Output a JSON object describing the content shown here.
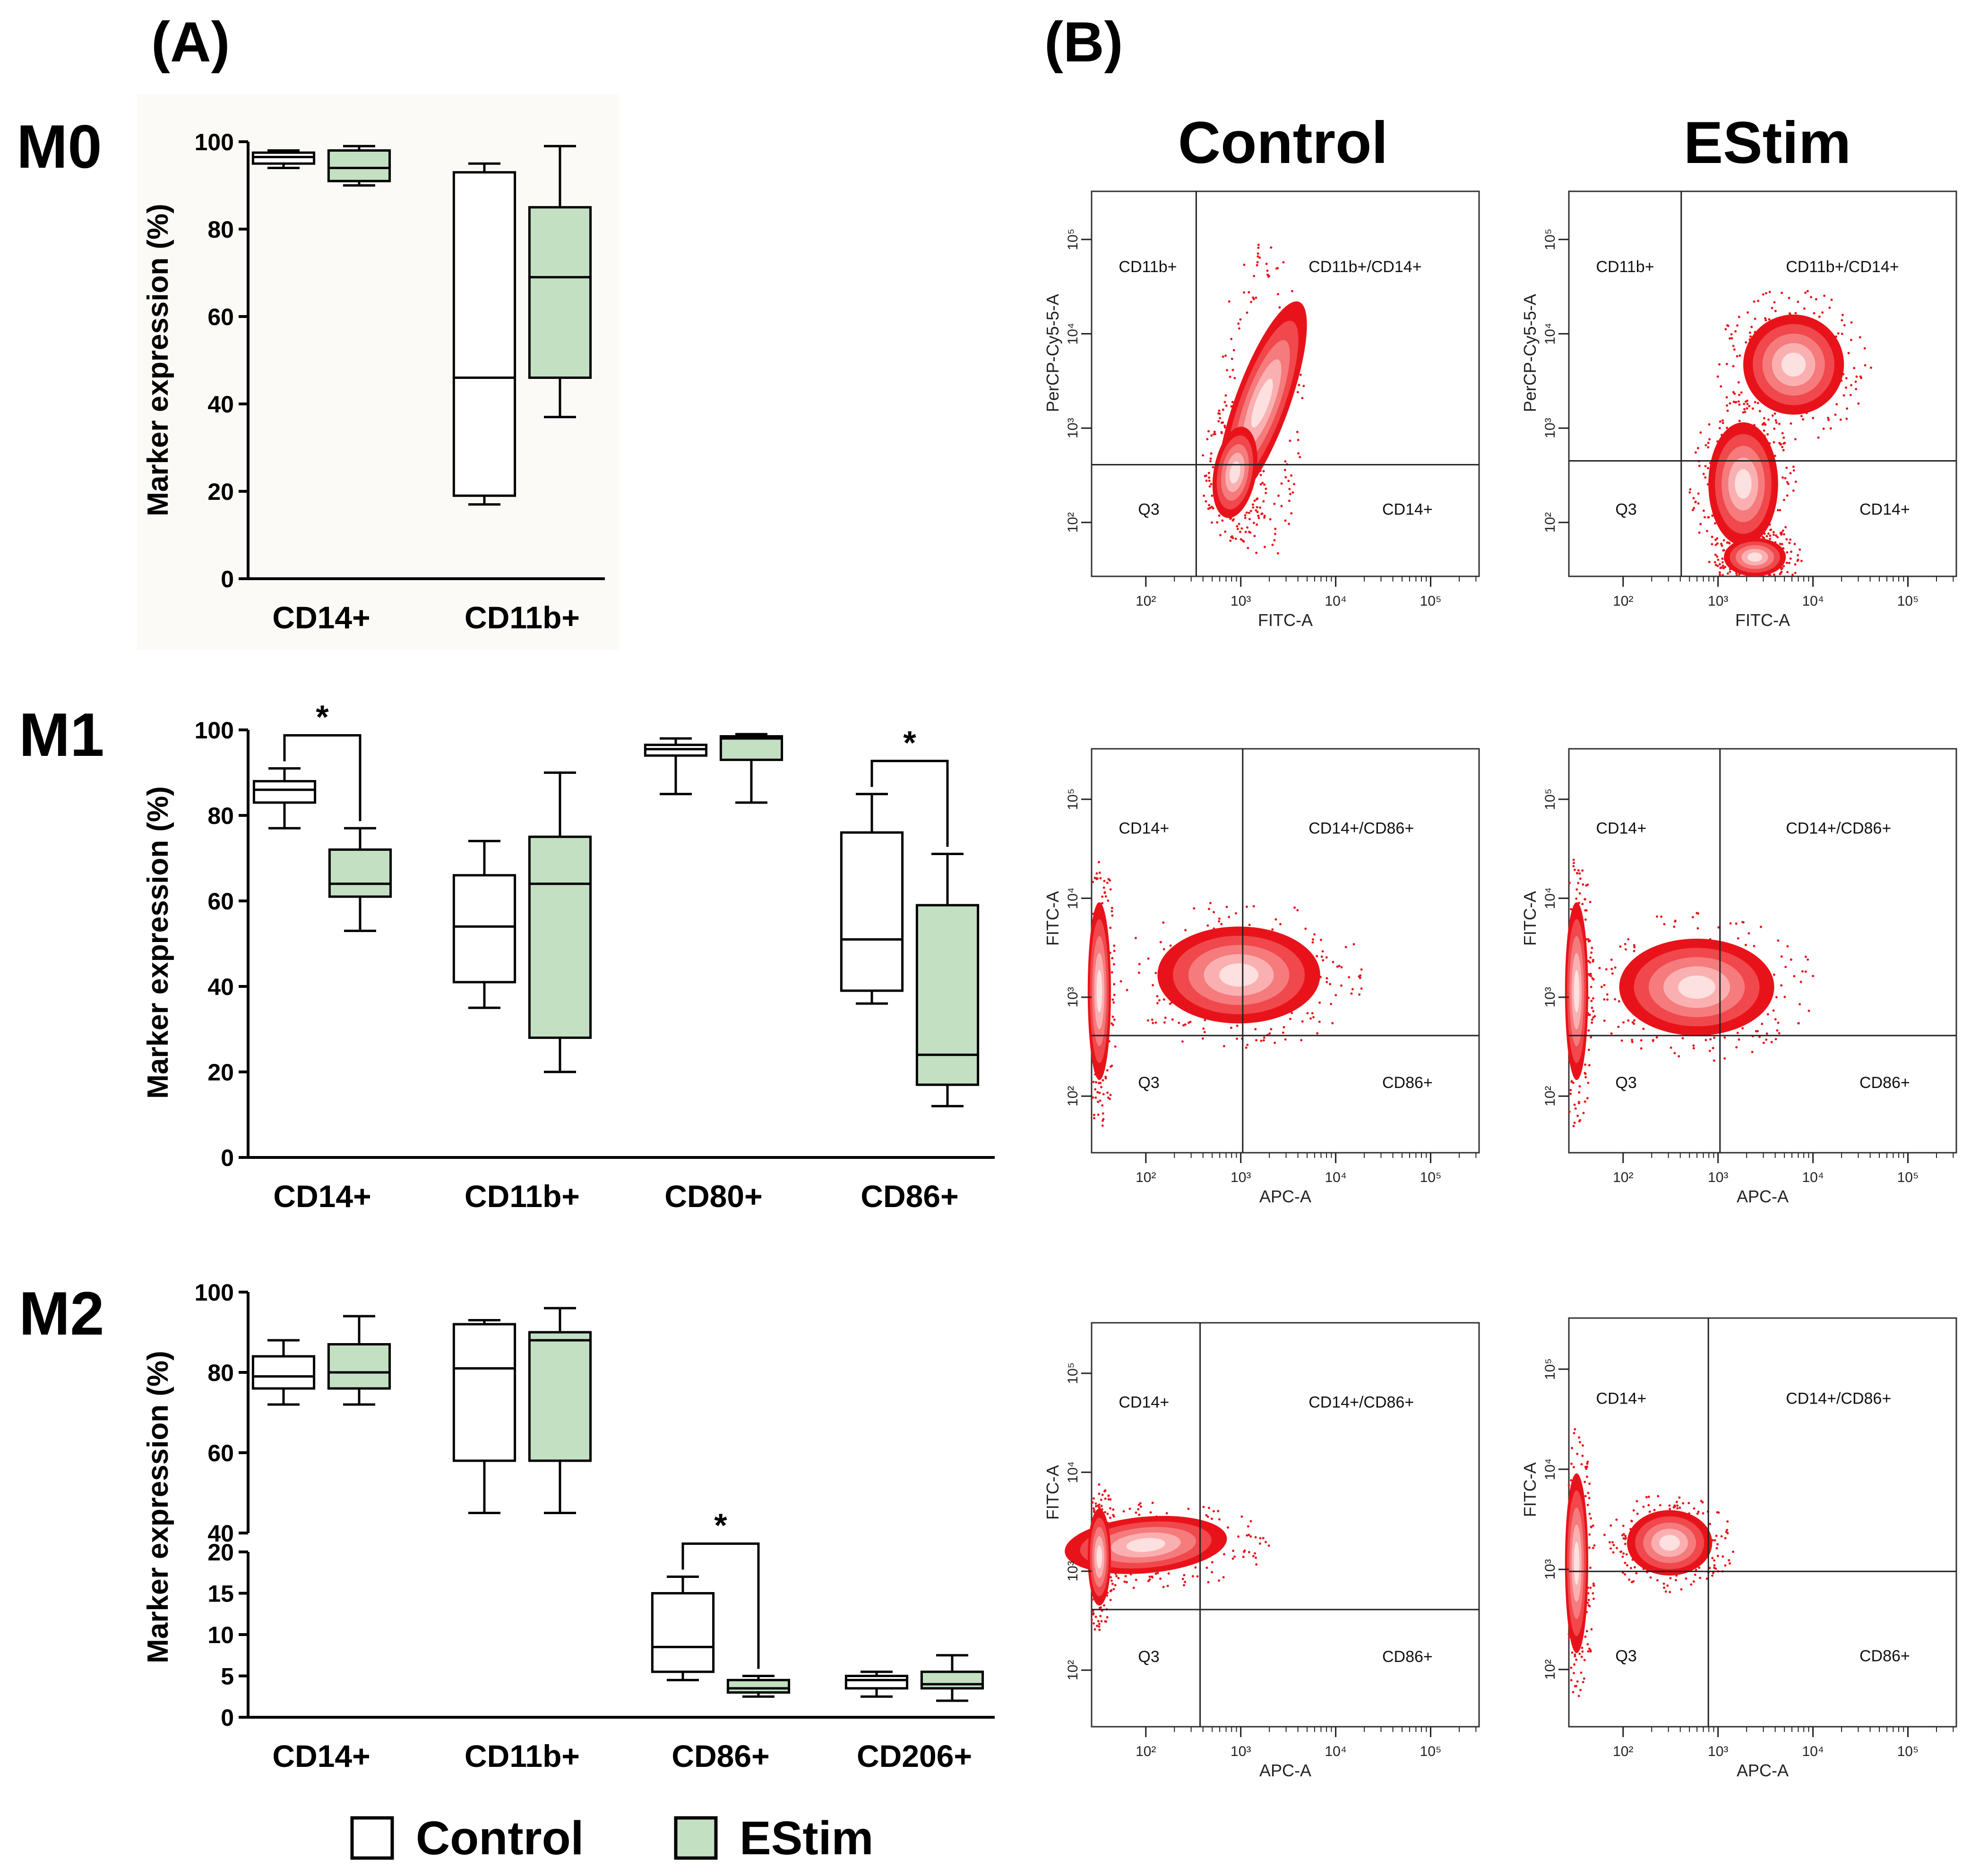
{
  "panel_labels": {
    "a": "(A)",
    "b": "(B)"
  },
  "rows": [
    {
      "label": "M0"
    },
    {
      "label": "M1"
    },
    {
      "label": "M2"
    }
  ],
  "columns": {
    "control": "Control",
    "estim": "EStim"
  },
  "legend": {
    "control": "Control",
    "estim": "EStim"
  },
  "colors": {
    "control_fill": "#ffffff",
    "estim_fill": "#c3e0c2",
    "stroke": "#000000",
    "density": "#e8131a"
  },
  "chart_data": [
    {
      "type": "box",
      "id": "M0",
      "ylabel": "Marker expression (%)",
      "ylim": [
        0,
        100
      ],
      "yticks": [
        0,
        20,
        40,
        60,
        80,
        100
      ],
      "categories": [
        "CD14+",
        "CD11b+"
      ],
      "series": [
        {
          "name": "Control",
          "boxes": [
            {
              "min": 94,
              "q1": 95,
              "median": 96.5,
              "q3": 97.5,
              "max": 98
            },
            {
              "min": 17,
              "q1": 19,
              "median": 46,
              "q3": 93,
              "max": 95
            }
          ]
        },
        {
          "name": "EStim",
          "boxes": [
            {
              "min": 90,
              "q1": 91,
              "median": 94,
              "q3": 98,
              "max": 99
            },
            {
              "min": 37,
              "q1": 46,
              "median": 69,
              "q3": 85,
              "max": 99
            }
          ]
        }
      ]
    },
    {
      "type": "box",
      "id": "M1",
      "ylabel": "Marker expression (%)",
      "ylim": [
        0,
        100
      ],
      "yticks": [
        0,
        20,
        40,
        60,
        80,
        100
      ],
      "categories": [
        "CD14+",
        "CD11b+",
        "CD80+",
        "CD86+"
      ],
      "series": [
        {
          "name": "Control",
          "boxes": [
            {
              "min": 77,
              "q1": 83,
              "median": 86,
              "q3": 88,
              "max": 91
            },
            {
              "min": 35,
              "q1": 41,
              "median": 54,
              "q3": 66,
              "max": 74
            },
            {
              "min": 85,
              "q1": 94,
              "median": 95.5,
              "q3": 96.5,
              "max": 98
            },
            {
              "min": 36,
              "q1": 39,
              "median": 51,
              "q3": 76,
              "max": 85
            }
          ]
        },
        {
          "name": "EStim",
          "boxes": [
            {
              "min": 53,
              "q1": 61,
              "median": 64,
              "q3": 72,
              "max": 77
            },
            {
              "min": 20,
              "q1": 28,
              "median": 64,
              "q3": 75,
              "max": 90
            },
            {
              "min": 83,
              "q1": 93,
              "median": 98,
              "q3": 98.5,
              "max": 99
            },
            {
              "min": 12,
              "q1": 17,
              "median": 24,
              "q3": 59,
              "max": 71
            }
          ]
        }
      ],
      "significance": [
        {
          "category": "CD14+",
          "label": "*"
        },
        {
          "category": "CD86+",
          "label": "*"
        }
      ]
    },
    {
      "type": "box",
      "id": "M2",
      "ylabel": "Marker expression (%)",
      "broken_axis": true,
      "upper_ylim": [
        40,
        100
      ],
      "upper_yticks": [
        40,
        60,
        80,
        100
      ],
      "lower_ylim": [
        0,
        20
      ],
      "lower_yticks": [
        0,
        5,
        10,
        15,
        20
      ],
      "categories": [
        "CD14+",
        "CD11b+",
        "CD86+",
        "CD206+"
      ],
      "series": [
        {
          "name": "Control",
          "boxes": [
            {
              "min": 72,
              "q1": 76,
              "median": 79,
              "q3": 84,
              "max": 88
            },
            {
              "min": 45,
              "q1": 58,
              "median": 81,
              "q3": 92,
              "max": 93
            },
            {
              "min": 4.5,
              "q1": 5.5,
              "median": 8.5,
              "q3": 15,
              "max": 17
            },
            {
              "min": 2.5,
              "q1": 3.5,
              "median": 4.5,
              "q3": 5,
              "max": 5.5
            }
          ]
        },
        {
          "name": "EStim",
          "boxes": [
            {
              "min": 72,
              "q1": 76,
              "median": 80,
              "q3": 87,
              "max": 94
            },
            {
              "min": 45,
              "q1": 58,
              "median": 88,
              "q3": 90,
              "max": 96
            },
            {
              "min": 2.5,
              "q1": 3,
              "median": 3.5,
              "q3": 4.5,
              "max": 5
            },
            {
              "min": 2,
              "q1": 3.5,
              "median": 4,
              "q3": 5.5,
              "max": 7.5
            }
          ]
        }
      ],
      "significance": [
        {
          "category": "CD86+",
          "label": "*"
        }
      ]
    }
  ],
  "flow_plots": [
    {
      "row": "M0",
      "condition": "Control",
      "xlabel": "FITC-A",
      "ylabel": "PerCP-Cy5-5-A",
      "quadrants": {
        "ul": "CD11b+",
        "ur": "CD11b+/CD14+",
        "ll": "Q3",
        "lr": "CD14+"
      }
    },
    {
      "row": "M0",
      "condition": "EStim",
      "xlabel": "FITC-A",
      "ylabel": "PerCP-Cy5-5-A",
      "quadrants": {
        "ul": "CD11b+",
        "ur": "CD11b+/CD14+",
        "ll": "Q3",
        "lr": "CD14+"
      }
    },
    {
      "row": "M1",
      "condition": "Control",
      "xlabel": "APC-A",
      "ylabel": "FITC-A",
      "quadrants": {
        "ul": "CD14+",
        "ur": "CD14+/CD86+",
        "ll": "Q3",
        "lr": "CD86+"
      }
    },
    {
      "row": "M1",
      "condition": "EStim",
      "xlabel": "APC-A",
      "ylabel": "FITC-A",
      "quadrants": {
        "ul": "CD14+",
        "ur": "CD14+/CD86+",
        "ll": "Q3",
        "lr": "CD86+"
      }
    },
    {
      "row": "M2",
      "condition": "Control",
      "xlabel": "APC-A",
      "ylabel": "FITC-A",
      "quadrants": {
        "ul": "CD14+",
        "ur": "CD14+/CD86+",
        "ll": "Q3",
        "lr": "CD86+"
      }
    },
    {
      "row": "M2",
      "condition": "EStim",
      "xlabel": "APC-A",
      "ylabel": "FITC-A",
      "quadrants": {
        "ul": "CD14+",
        "ur": "CD14+/CD86+",
        "ll": "Q3",
        "lr": "CD86+"
      }
    }
  ],
  "flow_axis_ticks": [
    "10²",
    "10³",
    "10⁴",
    "10⁵"
  ]
}
